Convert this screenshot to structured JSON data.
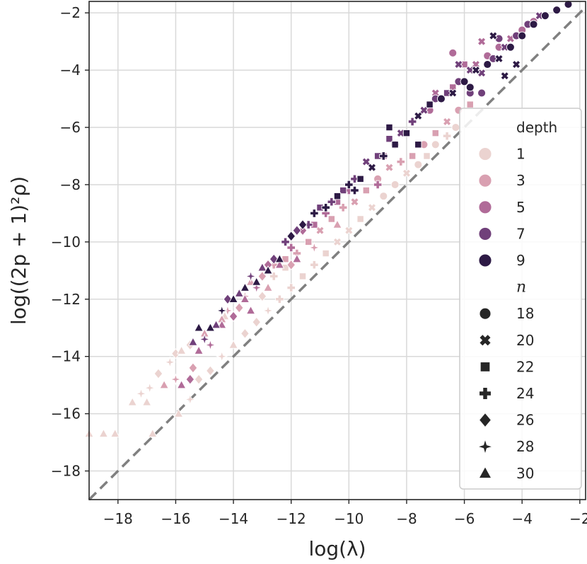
{
  "chart_data": {
    "type": "scatter",
    "title": "",
    "xlabel": "log(λ)",
    "ylabel": "log((2p + 1)²ρ)",
    "xlim": [
      -19,
      -1.8
    ],
    "ylim": [
      -19,
      -1.6
    ],
    "grid": true,
    "x_ticks": [
      -18,
      -16,
      -14,
      -12,
      -10,
      -8,
      -6,
      -4,
      -2
    ],
    "y_ticks": [
      -18,
      -16,
      -14,
      -12,
      -10,
      -8,
      -6,
      -4,
      -2
    ],
    "x_tick_labels": [
      "−18",
      "−16",
      "−14",
      "−12",
      "−10",
      "−8",
      "−6",
      "−4",
      "−2"
    ],
    "y_tick_labels": [
      "−18",
      "−16",
      "−14",
      "−12",
      "−10",
      "−8",
      "−6",
      "−4",
      "−2"
    ],
    "reference_line": {
      "name": "identity",
      "x": [
        -19,
        -1.8
      ],
      "y": [
        -19,
        -1.8
      ],
      "style": "dashed",
      "color": "#808080"
    },
    "hue": {
      "title": "depth",
      "levels": [
        "1",
        "3",
        "5",
        "7",
        "9"
      ],
      "colors": [
        "#ebd3d0",
        "#d9a0b1",
        "#b06b98",
        "#70407a",
        "#2d1a45"
      ]
    },
    "style": {
      "title": "n",
      "levels": [
        "18",
        "20",
        "22",
        "24",
        "26",
        "28",
        "30"
      ],
      "markers": [
        "circle",
        "x",
        "square",
        "plus",
        "diamond",
        "star",
        "triangle"
      ]
    },
    "legend_placement": "right, vertically centered",
    "series": [
      {
        "name": "depth=1",
        "depth": "1",
        "points": [
          [
            -19.0,
            -16.7,
            "30"
          ],
          [
            -18.5,
            -16.7,
            "30"
          ],
          [
            -18.1,
            -16.7,
            "30"
          ],
          [
            -17.5,
            -15.6,
            "30"
          ],
          [
            -17.0,
            -15.6,
            "30"
          ],
          [
            -17.2,
            -15.3,
            "28"
          ],
          [
            -16.9,
            -15.1,
            "28"
          ],
          [
            -16.8,
            -16.7,
            "30"
          ],
          [
            -16.6,
            -14.6,
            "26"
          ],
          [
            -16.2,
            -14.2,
            "28"
          ],
          [
            -16.0,
            -13.9,
            "26"
          ],
          [
            -15.8,
            -13.8,
            "30"
          ],
          [
            -15.5,
            -13.6,
            "26"
          ],
          [
            -15.9,
            -16.0,
            "30"
          ],
          [
            -15.5,
            -15.5,
            "28"
          ],
          [
            -15.2,
            -14.8,
            "26"
          ],
          [
            -14.8,
            -14.5,
            "26"
          ],
          [
            -14.4,
            -14.0,
            "28"
          ],
          [
            -14.0,
            -13.6,
            "30"
          ],
          [
            -13.6,
            -13.2,
            "26"
          ],
          [
            -13.2,
            -12.8,
            "26"
          ],
          [
            -12.8,
            -12.4,
            "28"
          ],
          [
            -12.4,
            -12.0,
            "24"
          ],
          [
            -12.0,
            -11.6,
            "24"
          ],
          [
            -11.6,
            -11.2,
            "22"
          ],
          [
            -11.2,
            -10.8,
            "24"
          ],
          [
            -10.8,
            -10.4,
            "22"
          ],
          [
            -10.4,
            -10.0,
            "20"
          ],
          [
            -10.0,
            -9.6,
            "20"
          ],
          [
            -9.6,
            -9.2,
            "22"
          ],
          [
            -9.2,
            -8.8,
            "20"
          ],
          [
            -8.8,
            -8.4,
            "18"
          ],
          [
            -8.4,
            -8.0,
            "18"
          ],
          [
            -8.0,
            -7.6,
            "20"
          ],
          [
            -7.6,
            -7.3,
            "18"
          ],
          [
            -7.3,
            -7.0,
            "22"
          ],
          [
            -7.0,
            -6.6,
            "18"
          ],
          [
            -6.6,
            -6.3,
            "24"
          ],
          [
            -6.3,
            -6.0,
            "18"
          ],
          [
            -15.0,
            -13.2,
            "30"
          ],
          [
            -14.3,
            -12.6,
            "30"
          ],
          [
            -13.8,
            -12.3,
            "28"
          ],
          [
            -13.0,
            -11.9,
            "26"
          ],
          [
            -12.6,
            -11.2,
            "24"
          ],
          [
            -12.2,
            -10.9,
            "22"
          ]
        ]
      },
      {
        "name": "depth=3",
        "depth": "3",
        "points": [
          [
            -16.4,
            -15.0,
            "30"
          ],
          [
            -16.0,
            -14.8,
            "28"
          ],
          [
            -15.4,
            -14.4,
            "26"
          ],
          [
            -15.0,
            -13.2,
            "30"
          ],
          [
            -14.6,
            -12.9,
            "30"
          ],
          [
            -14.2,
            -12.4,
            "28"
          ],
          [
            -13.8,
            -12.3,
            "26"
          ],
          [
            -13.4,
            -11.4,
            "30"
          ],
          [
            -13.0,
            -11.2,
            "26"
          ],
          [
            -12.6,
            -10.8,
            "24"
          ],
          [
            -12.2,
            -10.6,
            "22"
          ],
          [
            -11.8,
            -10.4,
            "24"
          ],
          [
            -11.4,
            -10.0,
            "22"
          ],
          [
            -11.0,
            -9.6,
            "20"
          ],
          [
            -10.6,
            -9.2,
            "22"
          ],
          [
            -10.2,
            -8.8,
            "24"
          ],
          [
            -9.8,
            -8.6,
            "20"
          ],
          [
            -9.4,
            -8.2,
            "22"
          ],
          [
            -9.0,
            -7.8,
            "18"
          ],
          [
            -8.6,
            -7.4,
            "20"
          ],
          [
            -8.2,
            -7.2,
            "24"
          ],
          [
            -7.8,
            -7.0,
            "22"
          ],
          [
            -7.4,
            -6.6,
            "18"
          ],
          [
            -7.0,
            -6.2,
            "22"
          ],
          [
            -6.6,
            -5.8,
            "20"
          ],
          [
            -6.2,
            -5.4,
            "18"
          ],
          [
            -5.8,
            -5.2,
            "22"
          ],
          [
            -5.4,
            -4.8,
            "20"
          ],
          [
            -14.4,
            -12.7,
            "30"
          ],
          [
            -13.6,
            -11.9,
            "28"
          ],
          [
            -12.8,
            -11.6,
            "30"
          ],
          [
            -12.0,
            -10.8,
            "26"
          ],
          [
            -11.2,
            -10.2,
            "28"
          ],
          [
            -10.4,
            -9.4,
            "30"
          ]
        ]
      },
      {
        "name": "depth=5",
        "depth": "5",
        "points": [
          [
            -15.8,
            -15.0,
            "30"
          ],
          [
            -15.5,
            -14.8,
            "26"
          ],
          [
            -15.2,
            -13.8,
            "30"
          ],
          [
            -14.8,
            -13.6,
            "28"
          ],
          [
            -14.4,
            -12.9,
            "30"
          ],
          [
            -14.0,
            -12.6,
            "26"
          ],
          [
            -13.6,
            -12.0,
            "30"
          ],
          [
            -13.2,
            -11.6,
            "28"
          ],
          [
            -12.8,
            -10.8,
            "26"
          ],
          [
            -12.4,
            -10.8,
            "30"
          ],
          [
            -12.0,
            -10.2,
            "24"
          ],
          [
            -11.6,
            -9.6,
            "26"
          ],
          [
            -11.2,
            -9.4,
            "22"
          ],
          [
            -10.8,
            -9.0,
            "24"
          ],
          [
            -10.4,
            -8.6,
            "22"
          ],
          [
            -10.0,
            -8.2,
            "24"
          ],
          [
            -9.6,
            -7.8,
            "20"
          ],
          [
            -9.2,
            -7.4,
            "22"
          ],
          [
            -8.8,
            -7.0,
            "22"
          ],
          [
            -8.4,
            -6.6,
            "24"
          ],
          [
            -8.0,
            -6.2,
            "20"
          ],
          [
            -7.6,
            -5.6,
            "22"
          ],
          [
            -7.2,
            -5.4,
            "18"
          ],
          [
            -6.8,
            -5.0,
            "20"
          ],
          [
            -6.4,
            -4.6,
            "22"
          ],
          [
            -6.0,
            -4.4,
            "18"
          ],
          [
            -5.6,
            -3.8,
            "20"
          ],
          [
            -5.2,
            -3.5,
            "18"
          ],
          [
            -4.8,
            -3.2,
            "18"
          ],
          [
            -4.4,
            -2.9,
            "20"
          ],
          [
            -4.0,
            -2.6,
            "18"
          ],
          [
            -3.6,
            -2.3,
            "18"
          ],
          [
            -3.2,
            -2.1,
            "20"
          ],
          [
            -6.4,
            -3.4,
            "18"
          ],
          [
            -6.0,
            -3.8,
            "22"
          ],
          [
            -7.0,
            -4.8,
            "20"
          ],
          [
            -5.4,
            -3.0,
            "20"
          ],
          [
            -11.8,
            -10.6,
            "30"
          ],
          [
            -13.4,
            -12.4,
            "30"
          ],
          [
            -9.0,
            -8.0,
            "24"
          ]
        ]
      },
      {
        "name": "depth=7",
        "depth": "7",
        "points": [
          [
            -15.4,
            -13.5,
            "30"
          ],
          [
            -15.0,
            -13.4,
            "28"
          ],
          [
            -14.6,
            -12.9,
            "30"
          ],
          [
            -14.2,
            -12.0,
            "26"
          ],
          [
            -13.8,
            -11.8,
            "30"
          ],
          [
            -13.4,
            -11.2,
            "28"
          ],
          [
            -13.0,
            -10.9,
            "30"
          ],
          [
            -12.6,
            -10.6,
            "26"
          ],
          [
            -12.2,
            -10.0,
            "24"
          ],
          [
            -11.8,
            -9.6,
            "26"
          ],
          [
            -11.4,
            -9.4,
            "24"
          ],
          [
            -11.0,
            -8.8,
            "22"
          ],
          [
            -10.6,
            -8.6,
            "24"
          ],
          [
            -10.2,
            -8.2,
            "22"
          ],
          [
            -9.8,
            -7.8,
            "24"
          ],
          [
            -9.4,
            -7.2,
            "20"
          ],
          [
            -9.0,
            -7.0,
            "22"
          ],
          [
            -8.6,
            -6.4,
            "22"
          ],
          [
            -8.2,
            -6.2,
            "20"
          ],
          [
            -7.8,
            -5.8,
            "24"
          ],
          [
            -7.4,
            -5.4,
            "20"
          ],
          [
            -7.0,
            -5.0,
            "18"
          ],
          [
            -6.6,
            -4.8,
            "22"
          ],
          [
            -6.2,
            -4.4,
            "18"
          ],
          [
            -5.8,
            -4.0,
            "20"
          ],
          [
            -5.4,
            -4.1,
            "20"
          ],
          [
            -5.0,
            -3.6,
            "18"
          ],
          [
            -4.6,
            -3.2,
            "20"
          ],
          [
            -4.2,
            -2.8,
            "18"
          ],
          [
            -3.8,
            -2.4,
            "18"
          ],
          [
            -5.8,
            -4.8,
            "18"
          ],
          [
            -5.4,
            -4.8,
            "18"
          ],
          [
            -6.2,
            -3.8,
            "20"
          ],
          [
            -4.8,
            -2.9,
            "18"
          ],
          [
            -3.4,
            -2.1,
            "20"
          ]
        ]
      },
      {
        "name": "depth=9",
        "depth": "9",
        "points": [
          [
            -15.2,
            -13.0,
            "30"
          ],
          [
            -14.8,
            -13.0,
            "30"
          ],
          [
            -14.4,
            -12.4,
            "28"
          ],
          [
            -14.0,
            -12.0,
            "30"
          ],
          [
            -13.6,
            -11.6,
            "30"
          ],
          [
            -13.2,
            -11.4,
            "30"
          ],
          [
            -12.8,
            -11.0,
            "30"
          ],
          [
            -12.4,
            -10.6,
            "30"
          ],
          [
            -12.0,
            -9.8,
            "26"
          ],
          [
            -11.6,
            -9.4,
            "26"
          ],
          [
            -11.2,
            -9.0,
            "24"
          ],
          [
            -10.8,
            -8.8,
            "24"
          ],
          [
            -10.4,
            -8.4,
            "22"
          ],
          [
            -10.0,
            -8.0,
            "24"
          ],
          [
            -9.6,
            -7.8,
            "22"
          ],
          [
            -9.2,
            -7.4,
            "20"
          ],
          [
            -8.8,
            -7.0,
            "24"
          ],
          [
            -8.4,
            -6.6,
            "22"
          ],
          [
            -8.0,
            -6.2,
            "22"
          ],
          [
            -7.6,
            -5.6,
            "20"
          ],
          [
            -7.2,
            -5.2,
            "22"
          ],
          [
            -6.8,
            -5.0,
            "18"
          ],
          [
            -6.4,
            -4.8,
            "20"
          ],
          [
            -6.0,
            -4.4,
            "18"
          ],
          [
            -5.6,
            -4.0,
            "20"
          ],
          [
            -5.2,
            -3.8,
            "18"
          ],
          [
            -4.8,
            -3.6,
            "20"
          ],
          [
            -4.4,
            -3.2,
            "18"
          ],
          [
            -4.0,
            -2.8,
            "18"
          ],
          [
            -3.6,
            -2.4,
            "18"
          ],
          [
            -3.2,
            -2.1,
            "18"
          ],
          [
            -2.8,
            -1.9,
            "18"
          ],
          [
            -2.4,
            -1.7,
            "18"
          ],
          [
            -5.0,
            -2.8,
            "20"
          ],
          [
            -4.6,
            -4.2,
            "20"
          ],
          [
            -5.8,
            -4.6,
            "18"
          ],
          [
            -4.2,
            -3.8,
            "20"
          ],
          [
            -8.6,
            -6.0,
            "22"
          ],
          [
            -7.6,
            -6.6,
            "22"
          ],
          [
            -9.8,
            -8.2,
            "24"
          ]
        ]
      }
    ]
  }
}
